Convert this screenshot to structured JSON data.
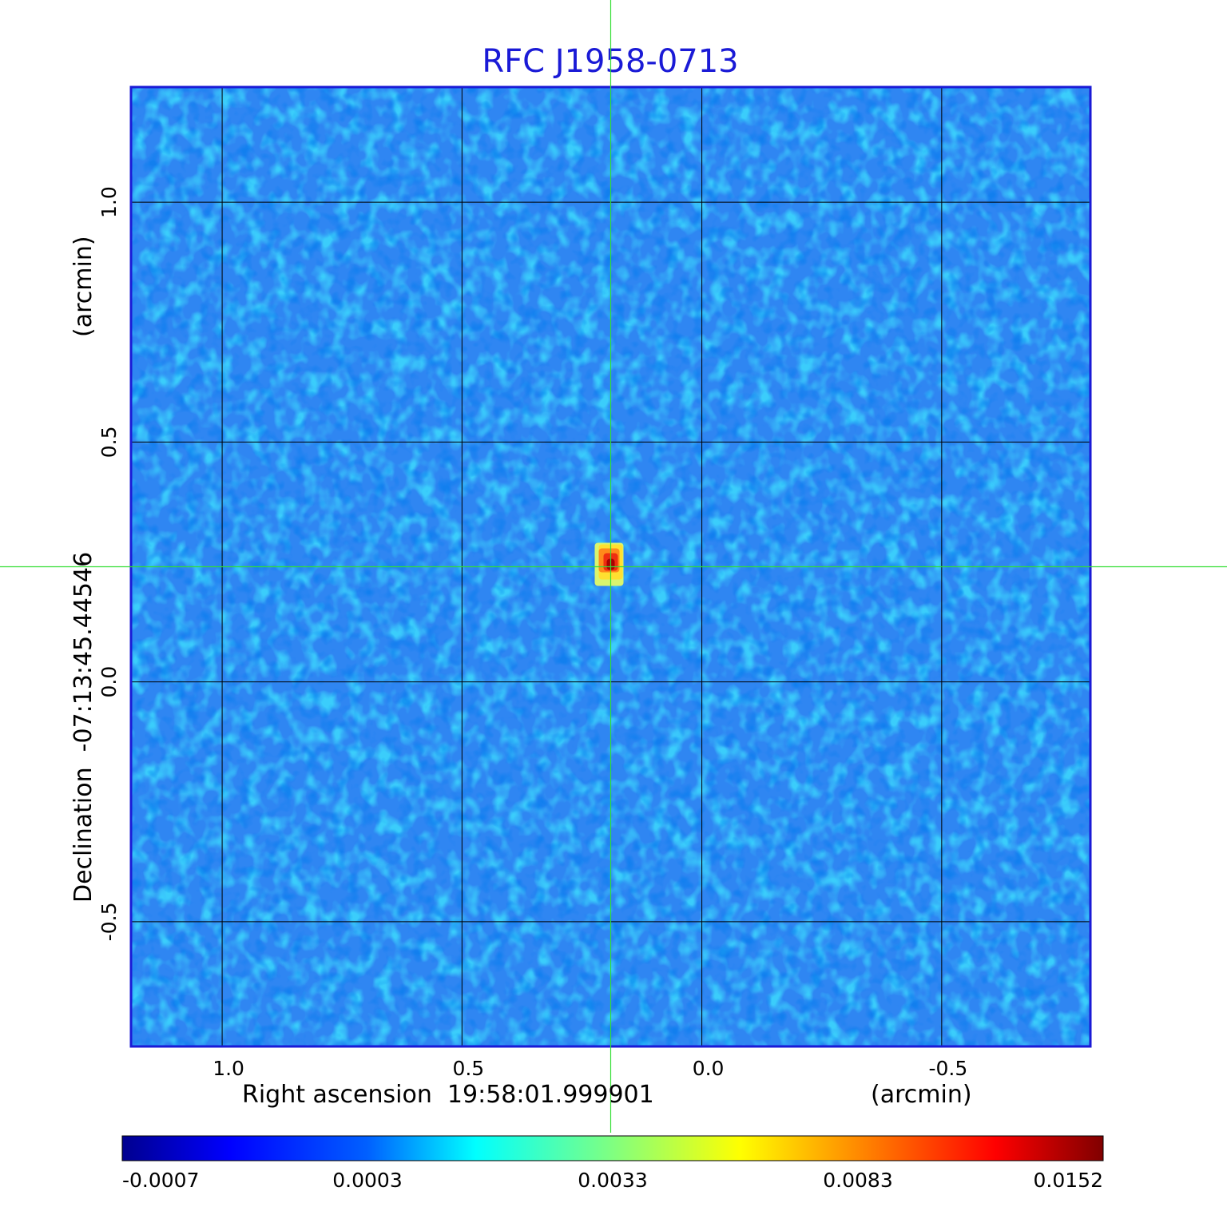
{
  "chart_data": {
    "type": "heatmap",
    "title": "RFC J1958-0713",
    "xlabel": "Right ascension  19:58:01.999901",
    "xunit": "(arcmin)",
    "ylabel": "Declination  -07:13:45.44546",
    "yunit": "(arcmin)",
    "xlim": [
      1.19,
      -0.81
    ],
    "ylim": [
      -0.76,
      1.24
    ],
    "x_ticks": [
      1.0,
      0.5,
      0.0,
      -0.5
    ],
    "x_tick_labels": [
      "1.0",
      "0.5",
      "0.0",
      "-0.5"
    ],
    "y_ticks": [
      1.0,
      0.5,
      0.0,
      -0.5
    ],
    "y_tick_labels": [
      "1.0",
      "0.5",
      "0.0",
      "-0.5"
    ],
    "grid": true,
    "crosshair": {
      "x": 0.19,
      "y": 0.24,
      "color": "#33dd33"
    },
    "source": {
      "x": 0.19,
      "y": 0.24,
      "peak": 0.0152
    },
    "colorbar": {
      "range": [
        -0.0007,
        0.0152
      ],
      "tick_labels": [
        "-0.0007",
        "0.0003",
        "0.0033",
        "0.0083",
        "0.0152"
      ],
      "colormap": "jet"
    },
    "colors": {
      "frame": "#1a1ad6",
      "background": "#2f86f2"
    }
  }
}
